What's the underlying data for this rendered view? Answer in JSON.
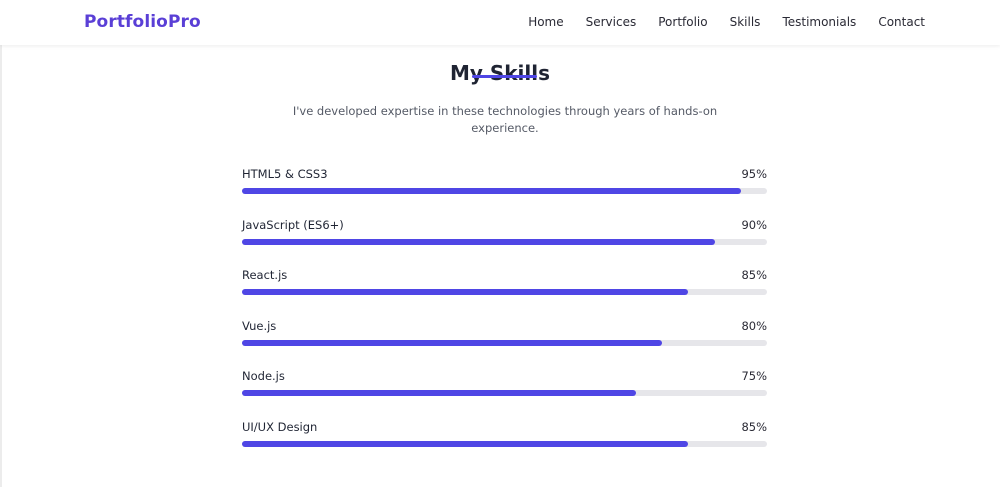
{
  "brand": {
    "logo": "PortfolioPro",
    "accent_color": "#4f46e5"
  },
  "nav": {
    "items": [
      {
        "label": "Home"
      },
      {
        "label": "Services"
      },
      {
        "label": "Portfolio"
      },
      {
        "label": "Skills"
      },
      {
        "label": "Testimonials"
      },
      {
        "label": "Contact"
      }
    ]
  },
  "section": {
    "title": "My Skills",
    "subtitle": "I've developed expertise in these technologies through years of hands-on experience."
  },
  "skills": [
    {
      "name": "HTML5 & CSS3",
      "percent_label": "95%",
      "value": 95
    },
    {
      "name": "JavaScript (ES6+)",
      "percent_label": "90%",
      "value": 90
    },
    {
      "name": "React.js",
      "percent_label": "85%",
      "value": 85
    },
    {
      "name": "Vue.js",
      "percent_label": "80%",
      "value": 80
    },
    {
      "name": "Node.js",
      "percent_label": "75%",
      "value": 75
    },
    {
      "name": "UI/UX Design",
      "percent_label": "85%",
      "value": 85
    }
  ]
}
